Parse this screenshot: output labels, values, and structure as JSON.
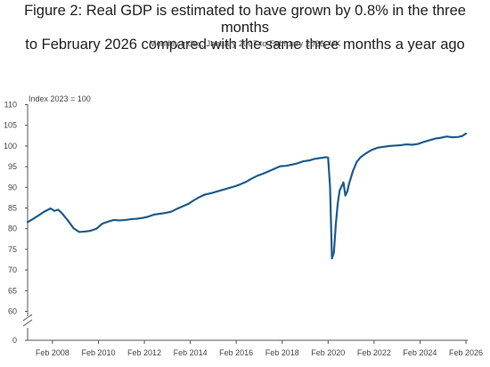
{
  "chart_data": {
    "type": "line",
    "title_line1": "Figure 2: Real GDP is estimated to have grown by 0.8% in the three months",
    "title_line2": "to February 2026 compared with the same three months a year ago",
    "subtitle": "Monthly index, January 2007 to February 2026, UK",
    "unit_label": "Index 2023 = 100",
    "xlabel": "",
    "ylabel": "",
    "ylim": [
      0,
      110
    ],
    "axis_break": true,
    "grid": false,
    "legend": "none",
    "line_color": "#1f5c8b",
    "y_ticks": [
      "0",
      "60",
      "65",
      "70",
      "75",
      "80",
      "85",
      "90",
      "95",
      "100",
      "105",
      "110"
    ],
    "x_ticks": [
      "Feb 2008",
      "Feb 2010",
      "Feb 2012",
      "Feb 2014",
      "Feb 2016",
      "Feb 2018",
      "Feb 2020",
      "Feb 2022",
      "Feb 2024",
      "Feb 2026"
    ],
    "series": [
      {
        "points": [
          [
            "2007-01",
            81.6
          ],
          [
            "2007-04",
            82.4
          ],
          [
            "2007-07",
            83.3
          ],
          [
            "2007-10",
            84.2
          ],
          [
            "2008-01",
            84.9
          ],
          [
            "2008-03",
            84.3
          ],
          [
            "2008-05",
            84.6
          ],
          [
            "2008-07",
            83.7
          ],
          [
            "2008-10",
            82.0
          ],
          [
            "2009-01",
            80.1
          ],
          [
            "2009-04",
            79.2
          ],
          [
            "2009-07",
            79.3
          ],
          [
            "2009-10",
            79.5
          ],
          [
            "2010-01",
            80.0
          ],
          [
            "2010-04",
            81.2
          ],
          [
            "2010-07",
            81.7
          ],
          [
            "2010-10",
            82.1
          ],
          [
            "2011-01",
            82.0
          ],
          [
            "2011-04",
            82.1
          ],
          [
            "2011-07",
            82.3
          ],
          [
            "2011-10",
            82.4
          ],
          [
            "2012-01",
            82.6
          ],
          [
            "2012-04",
            82.9
          ],
          [
            "2012-07",
            83.4
          ],
          [
            "2012-10",
            83.6
          ],
          [
            "2013-01",
            83.8
          ],
          [
            "2013-04",
            84.1
          ],
          [
            "2013-07",
            84.8
          ],
          [
            "2013-10",
            85.4
          ],
          [
            "2014-01",
            86.0
          ],
          [
            "2014-04",
            86.9
          ],
          [
            "2014-07",
            87.7
          ],
          [
            "2014-10",
            88.3
          ],
          [
            "2015-01",
            88.6
          ],
          [
            "2015-04",
            89.0
          ],
          [
            "2015-07",
            89.4
          ],
          [
            "2015-10",
            89.8
          ],
          [
            "2016-01",
            90.2
          ],
          [
            "2016-04",
            90.7
          ],
          [
            "2016-07",
            91.3
          ],
          [
            "2016-10",
            92.1
          ],
          [
            "2017-01",
            92.8
          ],
          [
            "2017-04",
            93.3
          ],
          [
            "2017-07",
            93.9
          ],
          [
            "2017-10",
            94.5
          ],
          [
            "2018-01",
            95.1
          ],
          [
            "2018-04",
            95.2
          ],
          [
            "2018-07",
            95.5
          ],
          [
            "2018-10",
            95.8
          ],
          [
            "2019-01",
            96.3
          ],
          [
            "2019-04",
            96.5
          ],
          [
            "2019-07",
            96.9
          ],
          [
            "2019-10",
            97.1
          ],
          [
            "2020-01",
            97.3
          ],
          [
            "2020-02",
            97.2
          ],
          [
            "2020-03",
            90.1
          ],
          [
            "2020-04",
            72.8
          ],
          [
            "2020-05",
            74.2
          ],
          [
            "2020-06",
            80.9
          ],
          [
            "2020-07",
            86.0
          ],
          [
            "2020-08",
            89.2
          ],
          [
            "2020-09",
            90.2
          ],
          [
            "2020-10",
            91.2
          ],
          [
            "2020-11",
            88.0
          ],
          [
            "2020-12",
            89.0
          ],
          [
            "2021-01",
            91.0
          ],
          [
            "2021-03",
            94.0
          ],
          [
            "2021-05",
            96.2
          ],
          [
            "2021-07",
            97.3
          ],
          [
            "2021-10",
            98.3
          ],
          [
            "2022-01",
            99.1
          ],
          [
            "2022-04",
            99.6
          ],
          [
            "2022-07",
            99.8
          ],
          [
            "2022-10",
            100.0
          ],
          [
            "2023-01",
            100.1
          ],
          [
            "2023-04",
            100.2
          ],
          [
            "2023-07",
            100.4
          ],
          [
            "2023-10",
            100.3
          ],
          [
            "2024-01",
            100.5
          ],
          [
            "2024-04",
            101.0
          ],
          [
            "2024-07",
            101.4
          ],
          [
            "2024-10",
            101.8
          ],
          [
            "2025-01",
            102.0
          ],
          [
            "2025-04",
            102.3
          ],
          [
            "2025-07",
            102.1
          ],
          [
            "2025-10",
            102.2
          ],
          [
            "2025-12",
            102.4
          ],
          [
            "2026-02",
            103.0
          ]
        ]
      }
    ]
  }
}
